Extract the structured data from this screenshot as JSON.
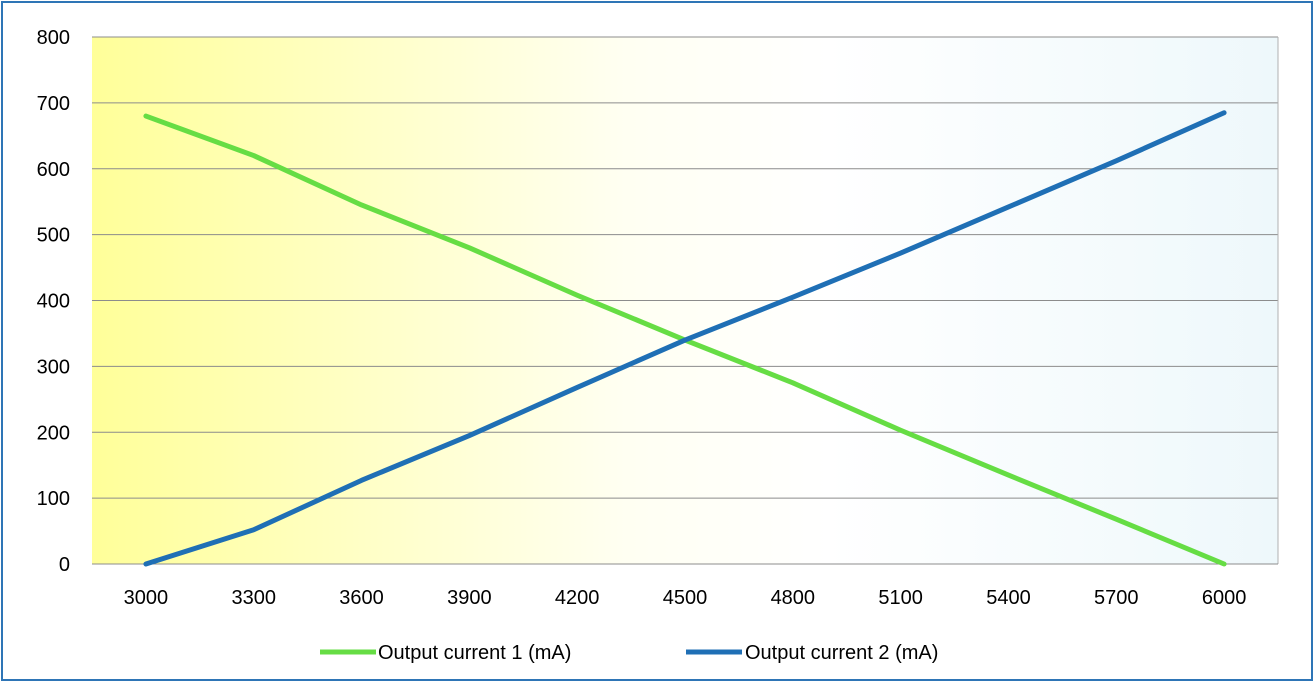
{
  "chart_data": {
    "type": "line",
    "title": "",
    "xlabel": "",
    "ylabel": "",
    "x": [
      3000,
      3300,
      3600,
      3900,
      4200,
      4500,
      4800,
      5100,
      5400,
      5700,
      6000
    ],
    "ylim": [
      0,
      800
    ],
    "yticks": [
      0,
      100,
      200,
      300,
      400,
      500,
      600,
      700,
      800
    ],
    "grid": true,
    "legend_position": "bottom",
    "background_gradient": [
      "#ffff99",
      "#fffff2",
      "#ffffff",
      "#eef8fb"
    ],
    "series": [
      {
        "name": "Output current 1 (mA)",
        "color": "#66dd44",
        "values": [
          680,
          620,
          545,
          480,
          408,
          340,
          275,
          203,
          135,
          68,
          0
        ]
      },
      {
        "name": "Output current 2 (mA)",
        "color": "#1f6fb5",
        "values": [
          0,
          52,
          127,
          195,
          268,
          340,
          405,
          472,
          542,
          612,
          685
        ]
      }
    ]
  }
}
